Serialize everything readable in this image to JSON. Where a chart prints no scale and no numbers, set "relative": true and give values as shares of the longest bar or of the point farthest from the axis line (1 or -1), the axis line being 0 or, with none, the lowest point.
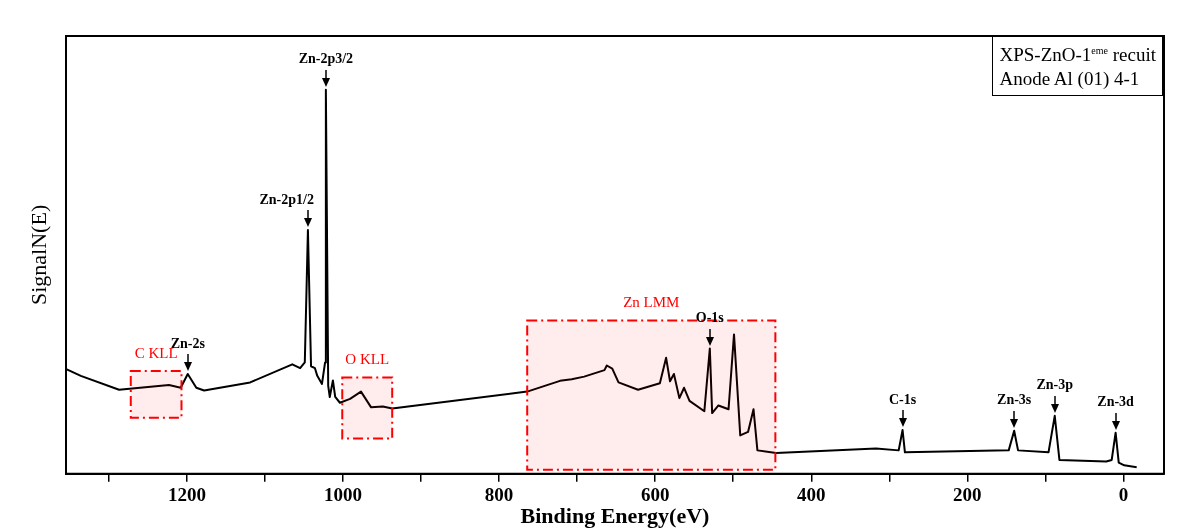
{
  "chart_data": {
    "type": "line",
    "xlabel": "Binding Energy(eV)",
    "ylabel": "SignalN(E)",
    "relative": true,
    "xlim": [
      1355,
      -52
    ],
    "xticks": [
      {
        "value": 1300,
        "label": null
      },
      1200,
      {
        "value": 1100,
        "label": null
      },
      1000,
      {
        "value": 900,
        "label": null
      },
      800,
      {
        "value": 700,
        "label": null
      },
      600,
      {
        "value": 500,
        "label": null
      },
      400,
      {
        "value": 300,
        "label": null
      },
      200,
      {
        "value": 100,
        "label": null
      },
      0
    ],
    "grid": false,
    "legend": false,
    "marker": "none",
    "line_style": "solid",
    "series": [
      {
        "color": "#000000",
        "x": [
          1354,
          1336,
          1287,
          1223,
          1208,
          1199,
          1188,
          1178,
          1119,
          1065,
          1055,
          1049,
          1045,
          1041,
          1036,
          1033,
          1027,
          1023,
          1022,
          1019,
          1017,
          1013,
          1010,
          1004,
          991,
          977,
          964,
          949,
          937,
          764,
          722,
          707,
          691,
          665,
          662,
          655,
          647,
          622,
          594,
          586,
          581,
          576,
          569,
          563,
          556,
          537,
          530,
          527,
          519,
          506,
          499,
          491,
          481,
          474,
          469,
          445,
          317,
          288,
          283,
          280,
          147,
          140,
          135,
          96,
          88,
          82,
          22,
          15,
          10,
          6,
          -1,
          -17
        ],
        "values": [
          0.272,
          0.255,
          0.219,
          0.231,
          0.224,
          0.26,
          0.224,
          0.217,
          0.238,
          0.285,
          0.275,
          0.29,
          0.635,
          0.28,
          0.275,
          0.255,
          0.234,
          0.29,
          1.0,
          0.229,
          0.2,
          0.243,
          0.2,
          0.185,
          0.195,
          0.214,
          0.173,
          0.175,
          0.17,
          0.214,
          0.242,
          0.246,
          0.253,
          0.27,
          0.282,
          0.274,
          0.238,
          0.219,
          0.236,
          0.302,
          0.241,
          0.26,
          0.197,
          0.224,
          0.19,
          0.163,
          0.326,
          0.158,
          0.178,
          0.168,
          0.363,
          0.1,
          0.109,
          0.168,
          0.061,
          0.054,
          0.066,
          0.061,
          0.114,
          0.056,
          0.061,
          0.112,
          0.061,
          0.056,
          0.151,
          0.036,
          0.032,
          0.036,
          0.107,
          0.029,
          0.022,
          0.017
        ]
      }
    ],
    "bands": [
      {
        "axis": "x",
        "from": 1272,
        "to": 1207,
        "label": "C KLL",
        "color": "#ff0000"
      },
      {
        "axis": "x",
        "from": 1001,
        "to": 937,
        "label": "O KLL",
        "color": "#ff0000"
      },
      {
        "axis": "x",
        "from": 764,
        "to": 446,
        "label": "Zn LMM",
        "color": "#ff0000"
      }
    ],
    "annotations": [
      "XPS-ZnO-1$^{eme}$ recuit",
      "Anode Al (01) 4-1",
      {
        "text": "Zn-2p3/2",
        "x": 1022,
        "y": 1.0
      },
      {
        "text": "Zn-2p1/2",
        "x": 1045,
        "y": 0.635
      },
      {
        "text": "Zn-2s",
        "x": 1199,
        "y": 0.26
      },
      {
        "text": "O-1s",
        "x": 530,
        "y": 0.326
      },
      {
        "text": "C-1s",
        "x": 283,
        "y": 0.114
      },
      {
        "text": "Zn-3s",
        "x": 140,
        "y": 0.112
      },
      {
        "text": "Zn-3p",
        "x": 88,
        "y": 0.151
      },
      {
        "text": "Zn-3d",
        "x": 10,
        "y": 0.107
      }
    ]
  }
}
